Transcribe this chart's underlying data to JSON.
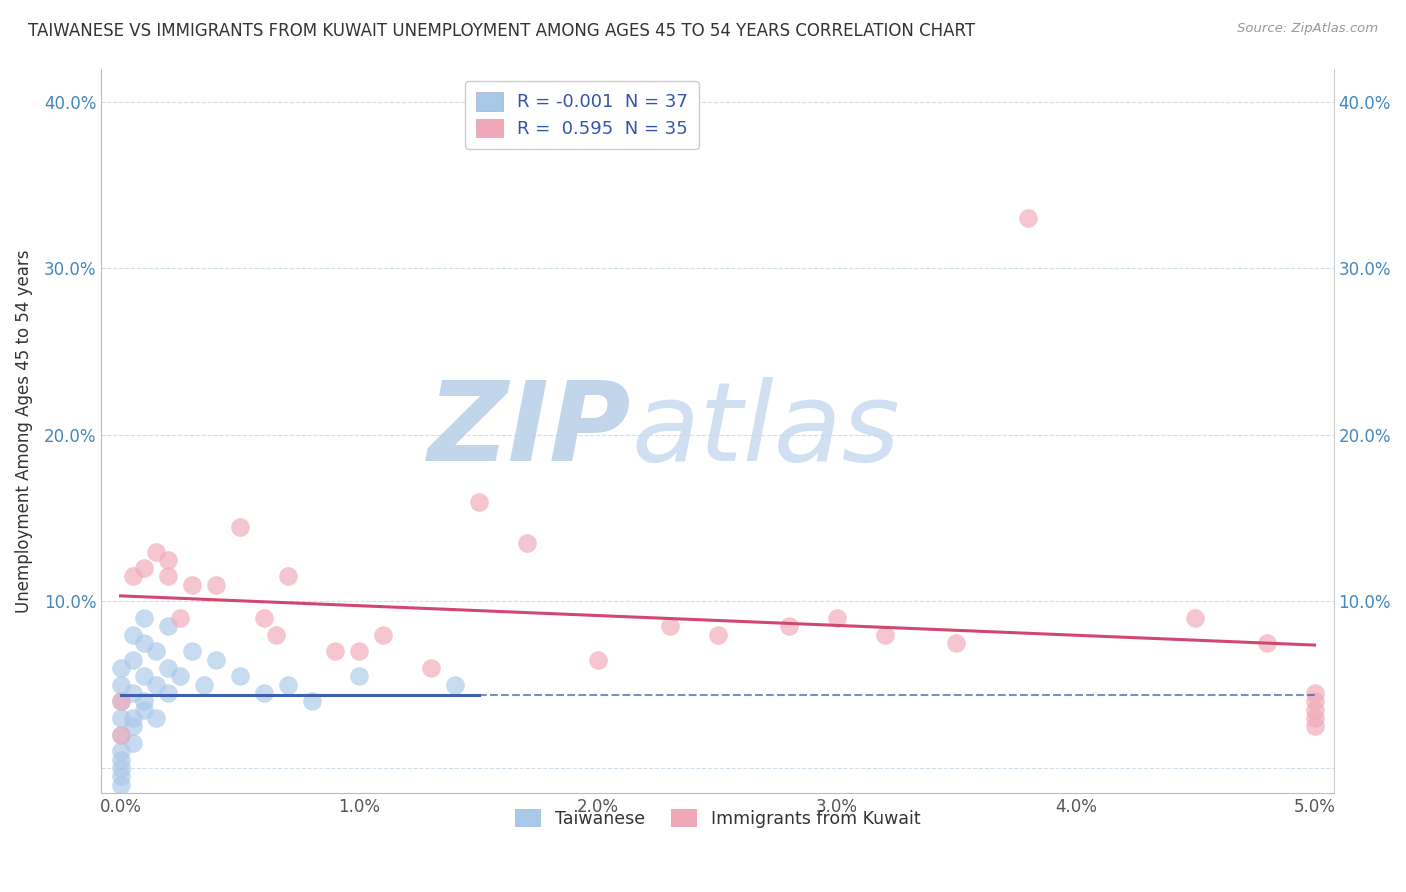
{
  "title": "TAIWANESE VS IMMIGRANTS FROM KUWAIT UNEMPLOYMENT AMONG AGES 45 TO 54 YEARS CORRELATION CHART",
  "source": "Source: ZipAtlas.com",
  "ylabel": "Unemployment Among Ages 45 to 54 years",
  "xlabel": "",
  "xlim": [
    0.0,
    5.0
  ],
  "ylim": [
    -1.5,
    42.0
  ],
  "xticks": [
    0.0,
    1.0,
    2.0,
    3.0,
    4.0,
    5.0
  ],
  "yticks": [
    0.0,
    10.0,
    20.0,
    30.0,
    40.0
  ],
  "ytick_labels": [
    "",
    "10.0%",
    "20.0%",
    "30.0%",
    "40.0%"
  ],
  "xtick_labels": [
    "0.0%",
    "1.0%",
    "2.0%",
    "3.0%",
    "4.0%",
    "5.0%"
  ],
  "background_color": "#ffffff",
  "watermark_zip": "ZIP",
  "watermark_atlas": "atlas",
  "watermark_color_zip": "#b8cfe8",
  "watermark_color_atlas": "#c8daf0",
  "legend_label1": "Taiwanese",
  "legend_label2": "Immigrants from Kuwait",
  "color_blue": "#a8c8e8",
  "color_pink": "#f0a8b8",
  "line_color_blue": "#4060b0",
  "line_color_pink": "#d04870",
  "taiwanese_x": [
    0.0,
    0.0,
    0.0,
    0.0,
    0.0,
    0.0,
    0.0,
    0.0,
    0.0,
    0.0,
    0.05,
    0.05,
    0.05,
    0.05,
    0.05,
    0.05,
    0.1,
    0.1,
    0.1,
    0.1,
    0.1,
    0.15,
    0.15,
    0.15,
    0.2,
    0.2,
    0.2,
    0.25,
    0.3,
    0.35,
    0.4,
    0.5,
    0.6,
    0.7,
    0.8,
    1.0,
    1.4
  ],
  "taiwanese_y": [
    -1.0,
    -0.5,
    0.0,
    0.5,
    1.0,
    2.0,
    3.0,
    4.0,
    5.0,
    6.0,
    1.5,
    3.0,
    4.5,
    6.5,
    8.0,
    2.5,
    3.5,
    5.5,
    7.5,
    4.0,
    9.0,
    5.0,
    7.0,
    3.0,
    6.0,
    8.5,
    4.5,
    5.5,
    7.0,
    5.0,
    6.5,
    5.5,
    4.5,
    5.0,
    4.0,
    5.5,
    5.0
  ],
  "kuwait_x": [
    0.0,
    0.0,
    0.05,
    0.1,
    0.15,
    0.2,
    0.2,
    0.25,
    0.3,
    0.4,
    0.5,
    0.6,
    0.65,
    0.7,
    0.9,
    1.0,
    1.1,
    1.3,
    1.5,
    1.7,
    2.0,
    2.3,
    2.5,
    2.8,
    3.0,
    3.2,
    3.5,
    3.8,
    4.5,
    4.8,
    5.0,
    5.0,
    5.0,
    5.0,
    5.0
  ],
  "kuwait_y": [
    2.0,
    4.0,
    11.5,
    12.0,
    13.0,
    11.5,
    12.5,
    9.0,
    11.0,
    11.0,
    14.5,
    9.0,
    8.0,
    11.5,
    7.0,
    7.0,
    8.0,
    6.0,
    16.0,
    13.5,
    6.5,
    8.5,
    8.0,
    8.5,
    9.0,
    8.0,
    7.5,
    33.0,
    9.0,
    7.5,
    4.0,
    3.5,
    2.5,
    4.5,
    3.0
  ],
  "taiwan_R": -0.001,
  "taiwan_N": 37,
  "kuwait_R": 0.595,
  "kuwait_N": 35,
  "grid_color": "#b0c8d8",
  "grid_style": "--",
  "grid_alpha": 0.6,
  "blue_line_x_end": 1.5,
  "blue_line_dashed_start": 1.5
}
